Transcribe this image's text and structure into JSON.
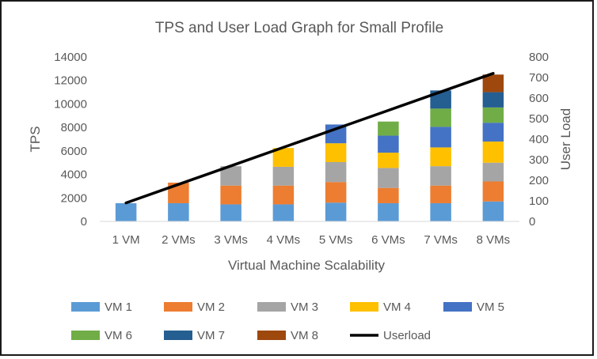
{
  "chart_data": {
    "type": "bar",
    "stacked": true,
    "title": "TPS and User Load Graph for Small Profile",
    "xlabel": "Virtual Machine Scalability",
    "ylabel": "TPS",
    "y2label": "User Load",
    "ylim": [
      0,
      14000
    ],
    "y2lim": [
      0,
      800
    ],
    "yticks": [
      "0",
      "2000",
      "4000",
      "6000",
      "8000",
      "10000",
      "12000",
      "14000"
    ],
    "y2ticks": [
      "0",
      "100",
      "200",
      "300",
      "400",
      "500",
      "600",
      "700",
      "800"
    ],
    "grid": false,
    "legend_position": "bottom",
    "categories": [
      "1 VM",
      "2 VMs",
      "3 VMs",
      "4 VMs",
      "5 VMs",
      "6 VMs",
      "7 VMs",
      "8 VMs"
    ],
    "series": [
      {
        "name": "VM 1",
        "color": "#5B9BD5",
        "values": [
          1550,
          1550,
          1450,
          1450,
          1600,
          1550,
          1550,
          1700
        ]
      },
      {
        "name": "VM 2",
        "color": "#ED7D31",
        "values": [
          null,
          1750,
          1600,
          1600,
          1750,
          1300,
          1500,
          1700
        ]
      },
      {
        "name": "VM 3",
        "color": "#A5A5A5",
        "values": [
          null,
          null,
          1650,
          1600,
          1700,
          1700,
          1650,
          1600
        ]
      },
      {
        "name": "VM 4",
        "color": "#FFC000",
        "values": [
          null,
          null,
          null,
          1600,
          1600,
          1300,
          1600,
          1800
        ]
      },
      {
        "name": "VM 5",
        "color": "#4472C4",
        "values": [
          null,
          null,
          null,
          null,
          1600,
          1450,
          1750,
          1600
        ]
      },
      {
        "name": "VM 6",
        "color": "#70AD47",
        "values": [
          null,
          null,
          null,
          null,
          null,
          1200,
          1550,
          1300
        ]
      },
      {
        "name": "VM 7",
        "color": "#255E91",
        "values": [
          null,
          null,
          null,
          null,
          null,
          null,
          1550,
          1300
        ]
      },
      {
        "name": "VM 8",
        "color": "#9E480E",
        "values": [
          null,
          null,
          null,
          null,
          null,
          null,
          null,
          1500
        ]
      }
    ],
    "line": {
      "name": "Userload",
      "axis": "secondary",
      "color": "#000000",
      "values": [
        90,
        180,
        270,
        360,
        450,
        540,
        630,
        720
      ]
    }
  }
}
